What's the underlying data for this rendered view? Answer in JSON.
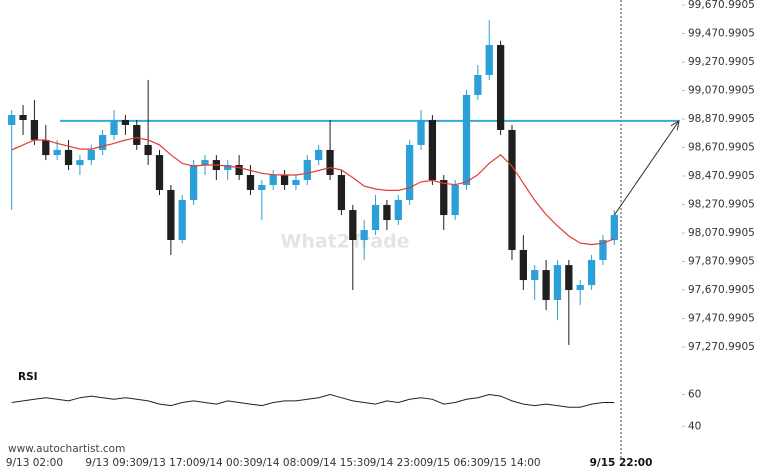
{
  "chart_data": [
    {
      "type": "candlestick",
      "categories": [
        null,
        null,
        "9/13 02:00",
        null,
        null,
        null,
        null,
        null,
        null,
        "9/13 09:30",
        null,
        null,
        null,
        null,
        "9/13 17:00",
        null,
        null,
        null,
        null,
        "9/14 00:30",
        null,
        null,
        null,
        null,
        "9/14 08:00",
        null,
        null,
        null,
        null,
        "9/14 15:30",
        null,
        null,
        null,
        null,
        "9/14 23:00",
        null,
        null,
        null,
        null,
        "9/15 06:30",
        null,
        null,
        null,
        null,
        "9/15 14:00",
        null,
        null,
        null,
        null,
        null,
        null,
        null,
        null,
        null
      ],
      "open": [
        98829,
        98899,
        98864,
        98724,
        98618,
        98654,
        98548,
        98583,
        98654,
        98759,
        98864,
        98829,
        98689,
        98618,
        98373,
        98022,
        98303,
        98548,
        98583,
        98513,
        98548,
        98478,
        98373,
        98408,
        98478,
        98408,
        98443,
        98583,
        98654,
        98478,
        98232,
        98022,
        98092,
        98268,
        98162,
        98303,
        98689,
        98864,
        98443,
        98197,
        98408,
        99040,
        99180,
        99390,
        98794,
        97952,
        97741,
        97811,
        97601,
        97846,
        97671,
        97706,
        97882,
        98022
      ],
      "high": [
        98934,
        98969,
        99004,
        98829,
        98724,
        98724,
        98618,
        98689,
        98794,
        98934,
        98899,
        98864,
        99145,
        98654,
        98408,
        98338,
        98583,
        98618,
        98618,
        98583,
        98618,
        98548,
        98443,
        98513,
        98513,
        98478,
        98618,
        98689,
        98864,
        98513,
        98268,
        98162,
        98338,
        98303,
        98338,
        98724,
        98934,
        98899,
        98478,
        98443,
        99075,
        99250,
        99566,
        99420,
        98829,
        98057,
        97846,
        97882,
        97882,
        97882,
        97741,
        97917,
        98057,
        98232
      ],
      "low": [
        98232,
        98759,
        98689,
        98583,
        98583,
        98513,
        98478,
        98548,
        98618,
        98724,
        98759,
        98654,
        98548,
        98338,
        97917,
        98000,
        98268,
        98478,
        98443,
        98443,
        98443,
        98338,
        98162,
        98373,
        98373,
        98373,
        98408,
        98548,
        98443,
        98197,
        97671,
        97882,
        98057,
        98092,
        98127,
        98268,
        98654,
        98408,
        98092,
        98162,
        98373,
        99004,
        99145,
        98759,
        97882,
        97671,
        97601,
        97531,
        97460,
        97285,
        97566,
        97671,
        97846,
        97987
      ],
      "close": [
        98899,
        98864,
        98724,
        98618,
        98654,
        98548,
        98583,
        98654,
        98759,
        98864,
        98829,
        98689,
        98618,
        98373,
        98022,
        98303,
        98548,
        98583,
        98513,
        98548,
        98478,
        98373,
        98408,
        98478,
        98408,
        98443,
        98583,
        98654,
        98478,
        98232,
        98022,
        98092,
        98268,
        98162,
        98303,
        98689,
        98864,
        98443,
        98197,
        98408,
        99040,
        99180,
        99390,
        98794,
        97952,
        97741,
        97811,
        97601,
        97846,
        97671,
        97706,
        97882,
        98022,
        98197
      ],
      "bull_color": "#2a9fd8",
      "bear_color": "#1f1f1f",
      "ylim": [
        97180,
        99706
      ],
      "yticks": [
        {
          "value": 97270.9905,
          "label": "97,270.9905"
        },
        {
          "value": 97470.9905,
          "label": "97,470.9905"
        },
        {
          "value": 97670.9905,
          "label": "97,670.9905"
        },
        {
          "value": 97870.9905,
          "label": "97,870.9905"
        },
        {
          "value": 98070.9905,
          "label": "98,070.9905"
        },
        {
          "value": 98270.9905,
          "label": "98,270.9905"
        },
        {
          "value": 98470.9905,
          "label": "98,470.9905"
        },
        {
          "value": 98670.9905,
          "label": "98,670.9905"
        },
        {
          "value": 98870.9905,
          "label": "98,870.9905"
        },
        {
          "value": 99070.9905,
          "label": "99,070.9905"
        },
        {
          "value": 99270.9905,
          "label": "99,270.9905"
        },
        {
          "value": 99470.9905,
          "label": "99,470.9905"
        },
        {
          "value": 99670.9905,
          "label": "99,670.9905"
        }
      ],
      "moving_average": {
        "color": "#e33b2e",
        "values": [
          98654,
          98689,
          98724,
          98724,
          98700,
          98680,
          98660,
          98660,
          98680,
          98700,
          98724,
          98740,
          98724,
          98689,
          98620,
          98560,
          98540,
          98548,
          98548,
          98540,
          98530,
          98510,
          98490,
          98480,
          98478,
          98478,
          98490,
          98510,
          98530,
          98513,
          98460,
          98400,
          98380,
          98370,
          98370,
          98390,
          98430,
          98440,
          98420,
          98410,
          98430,
          98480,
          98560,
          98620,
          98540,
          98420,
          98300,
          98200,
          98120,
          98050,
          98000,
          97990,
          98000,
          98030
        ]
      },
      "level": {
        "value": 98858,
        "color": "#3aa8de"
      },
      "current_time": "9/15 22:00",
      "watermark": "What2Trade",
      "source": "www.autochartist.com"
    },
    {
      "type": "line",
      "title": "RSI",
      "color": "#222222",
      "values": [
        55,
        56,
        57,
        58,
        57,
        56,
        58,
        59,
        58,
        57,
        58,
        57,
        56,
        54,
        53,
        55,
        56,
        55,
        54,
        56,
        55,
        54,
        53,
        55,
        56,
        56,
        57,
        58,
        60,
        58,
        56,
        55,
        54,
        56,
        55,
        57,
        58,
        57,
        54,
        55,
        57,
        58,
        60,
        59,
        56,
        54,
        53,
        54,
        53,
        52,
        52,
        54,
        55,
        55
      ],
      "ylim": [
        32,
        66
      ],
      "yticks": [
        40,
        60
      ]
    }
  ]
}
